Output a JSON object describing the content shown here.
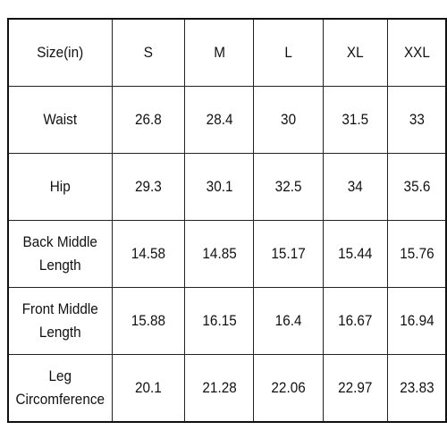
{
  "table": {
    "header": [
      "Size(in)",
      "S",
      "M",
      "L",
      "XL",
      "XXL"
    ],
    "rows": [
      [
        "Waist",
        "26.8",
        "28.4",
        "30",
        "31.5",
        "33"
      ],
      [
        "Hip",
        "29.3",
        "30.1",
        "32.5",
        "34",
        "35.6"
      ],
      [
        "Back Middle Length",
        "14.58",
        "14.85",
        "15.17",
        "15.44",
        "15.76"
      ],
      [
        "Front Middle Length",
        "15.88",
        "16.15",
        "16.4",
        "16.67",
        "16.94"
      ],
      [
        "Leg Circomference",
        "20.1",
        "21.28",
        "22.06",
        "22.97",
        "23.83"
      ]
    ]
  }
}
